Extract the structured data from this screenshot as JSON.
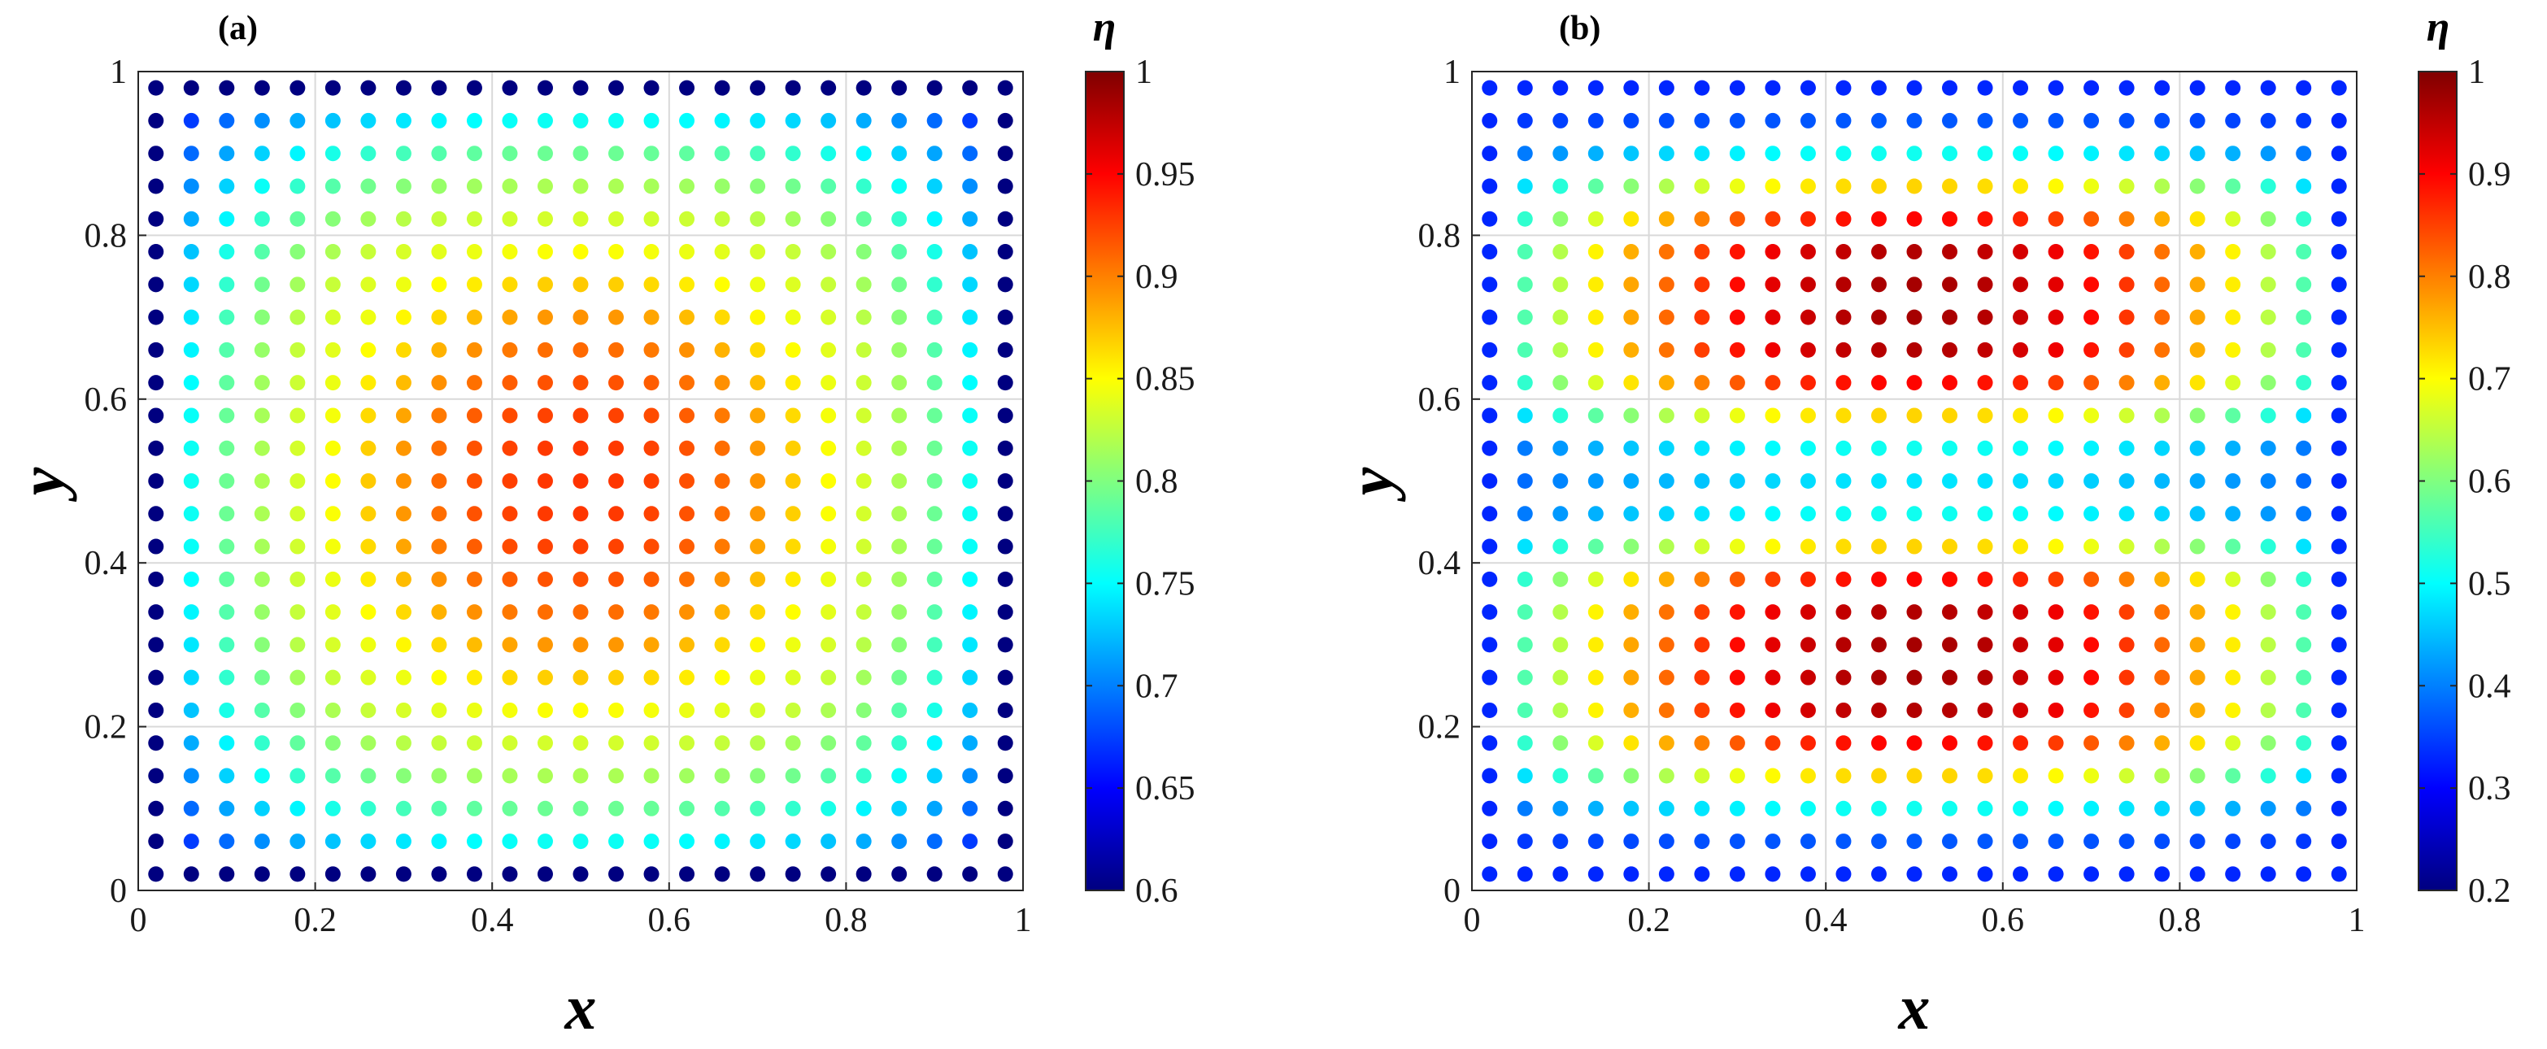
{
  "chart_data": [
    {
      "type": "scatter",
      "panel_label": "(a)",
      "xlabel": "x",
      "ylabel": "y",
      "xlim": [
        0,
        1
      ],
      "ylim": [
        0,
        1
      ],
      "grid": true,
      "x_ticks": [
        0,
        0.2,
        0.4,
        0.6,
        0.8,
        1
      ],
      "x_tick_labels": [
        "0",
        "0.2",
        "0.4",
        "0.6",
        "0.8",
        "1"
      ],
      "y_ticks": [
        0,
        0.2,
        0.4,
        0.6,
        0.8,
        1
      ],
      "y_tick_labels": [
        "0",
        "0.2",
        "0.4",
        "0.6",
        "0.8",
        "1"
      ],
      "points_grid": {
        "start": 0.02,
        "step": 0.04,
        "count": 25
      },
      "colorbar": {
        "label": "η",
        "colormap": "jet",
        "limits": [
          0.6,
          1
        ],
        "ticks": [
          0.6,
          0.65,
          0.7,
          0.75,
          0.8,
          0.85,
          0.9,
          0.95,
          1
        ],
        "tick_labels": [
          "0.6",
          "0.65",
          "0.7",
          "0.75",
          "0.8",
          "0.85",
          "0.9",
          "0.95",
          "1"
        ]
      },
      "field": {
        "model": "background + amp·sin²(πx/2·k)·sin²(πy/2·k) with a central boost",
        "boundary_value": 0.6,
        "peak_value": 0.93,
        "edge_ring_value": 0.75,
        "yellow_ring_value": 0.85
      }
    },
    {
      "type": "scatter",
      "panel_label": "(b)",
      "xlabel": "x",
      "ylabel": "y",
      "xlim": [
        0,
        1
      ],
      "ylim": [
        0,
        1
      ],
      "grid": true,
      "x_ticks": [
        0,
        0.2,
        0.4,
        0.6,
        0.8,
        1
      ],
      "x_tick_labels": [
        "0",
        "0.2",
        "0.4",
        "0.6",
        "0.8",
        "1"
      ],
      "y_ticks": [
        0,
        0.2,
        0.4,
        0.6,
        0.8,
        1
      ],
      "y_tick_labels": [
        "0",
        "0.2",
        "0.4",
        "0.6",
        "0.8",
        "1"
      ],
      "points_grid": {
        "start": 0.02,
        "step": 0.04,
        "count": 25
      },
      "colorbar": {
        "label": "η",
        "colormap": "jet",
        "limits": [
          0.2,
          1
        ],
        "ticks": [
          0.2,
          0.3,
          0.4,
          0.5,
          0.6,
          0.7,
          0.8,
          0.9,
          1
        ],
        "tick_labels": [
          "0.2",
          "0.3",
          "0.4",
          "0.5",
          "0.6",
          "0.7",
          "0.8",
          "0.9",
          "1"
        ]
      },
      "field": {
        "model": "two lobes (lower and upper) separated by a band near y = 0.5",
        "boundary_value": 0.35,
        "peak_value": 0.95,
        "separator_value": 0.45
      }
    }
  ]
}
